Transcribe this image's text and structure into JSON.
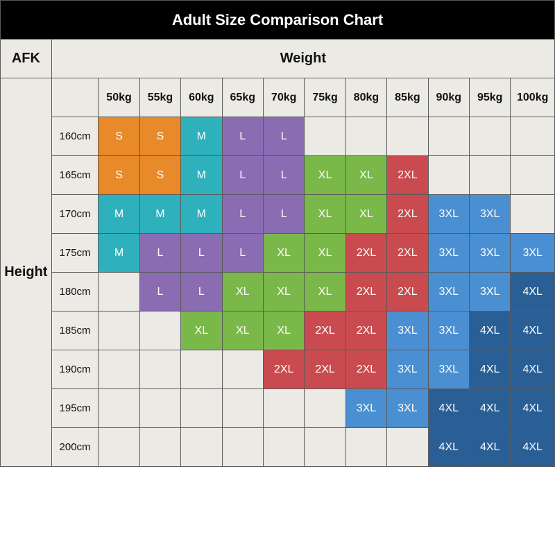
{
  "title": "Adult Size Comparison Chart",
  "corner_label": "AFK",
  "x_axis_label": "Weight",
  "y_axis_label": "Height",
  "background_color": "#eceae4",
  "border_color": "#5a5a5a",
  "title_bg": "#000000",
  "title_color": "#ffffff",
  "header_fontsize": 20,
  "col_header_fontsize": 16,
  "cell_fontsize": 16,
  "size_colors": {
    "S": "#e88a2a",
    "M": "#2fb0bd",
    "L": "#8a6cb3",
    "XL": "#7ab84a",
    "2XL": "#c94b4f",
    "3XL": "#4a8fd1",
    "4XL": "#2a5f96"
  },
  "weights": [
    "50kg",
    "55kg",
    "60kg",
    "65kg",
    "70kg",
    "75kg",
    "80kg",
    "85kg",
    "90kg",
    "95kg",
    "100kg"
  ],
  "heights": [
    "160cm",
    "165cm",
    "170cm",
    "175cm",
    "180cm",
    "185cm",
    "190cm",
    "195cm",
    "200cm"
  ],
  "grid": [
    [
      "S",
      "S",
      "M",
      "L",
      "L",
      "",
      "",
      "",
      "",
      "",
      ""
    ],
    [
      "S",
      "S",
      "M",
      "L",
      "L",
      "XL",
      "XL",
      "2XL",
      "",
      "",
      ""
    ],
    [
      "M",
      "M",
      "M",
      "L",
      "L",
      "XL",
      "XL",
      "2XL",
      "3XL",
      "3XL",
      ""
    ],
    [
      "M",
      "L",
      "L",
      "L",
      "XL",
      "XL",
      "2XL",
      "2XL",
      "3XL",
      "3XL",
      "3XL"
    ],
    [
      "",
      "L",
      "L",
      "XL",
      "XL",
      "XL",
      "2XL",
      "2XL",
      "3XL",
      "3XL",
      "4XL"
    ],
    [
      "",
      "",
      "XL",
      "XL",
      "XL",
      "2XL",
      "2XL",
      "3XL",
      "3XL",
      "4XL",
      "4XL"
    ],
    [
      "",
      "",
      "",
      "",
      "2XL",
      "2XL",
      "2XL",
      "3XL",
      "3XL",
      "4XL",
      "4XL"
    ],
    [
      "",
      "",
      "",
      "",
      "",
      "",
      "3XL",
      "3XL",
      "4XL",
      "4XL",
      "4XL"
    ],
    [
      "",
      "",
      "",
      "",
      "",
      "",
      "",
      "",
      "4XL",
      "4XL",
      "4XL"
    ]
  ]
}
